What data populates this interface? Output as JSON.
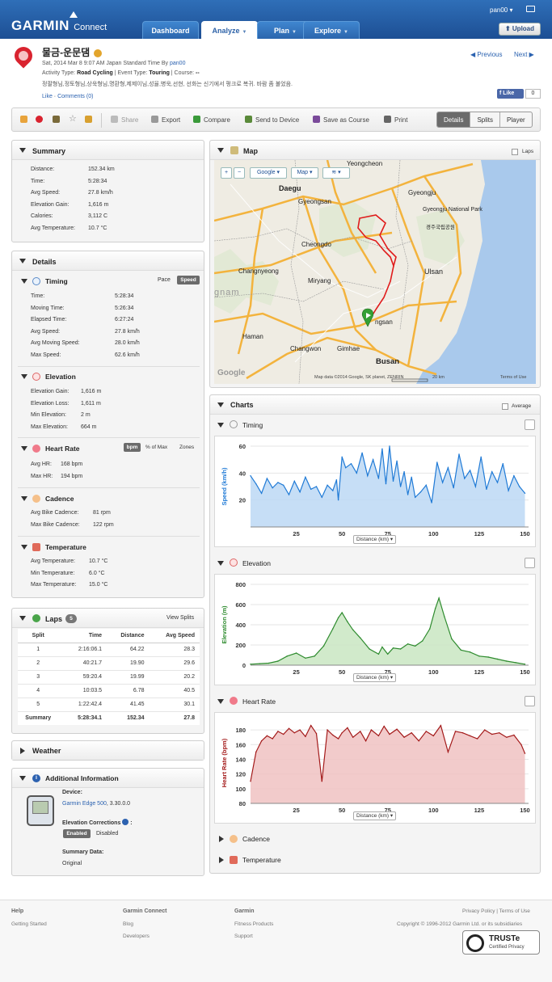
{
  "header": {
    "brand": "GARMIN",
    "product": "Connect",
    "tabs": [
      "Dashboard",
      "Analyze",
      "Plan",
      "Explore"
    ],
    "active_tab": "Analyze",
    "user": "pan00",
    "upload_label": "Upload"
  },
  "activity": {
    "title": "물금-운문댐",
    "date_line": "Sat, 2014 Mar 8 9:07 AM Japan Standard Time By",
    "author": "pan00",
    "type_label": "Activity Type:",
    "type": "Road Cycling",
    "event_label": "| Event Type:",
    "event": "Touring",
    "course_label": "| Course:",
    "course": "--",
    "description": "정팔형님,정토형님,상욱형님,명환형,제제이님,성율,병욱,선현, 선화는 신기에서 펑크로 복귀. 바람 좀 불었음.",
    "like": "Like",
    "comments": "Comments (0)",
    "prev": "Previous",
    "next": "Next",
    "fb_like": "Like",
    "fb_count": "0"
  },
  "toolbar": {
    "share": "Share",
    "export": "Export",
    "compare": "Compare",
    "send": "Send to Device",
    "save_course": "Save as Course",
    "print": "Print",
    "views": [
      "Details",
      "Splits",
      "Player"
    ]
  },
  "summary": {
    "title": "Summary",
    "rows": [
      [
        "Distance:",
        "152.34 km"
      ],
      [
        "Time:",
        "5:28:34"
      ],
      [
        "Avg Speed:",
        "27.8 km/h"
      ],
      [
        "Elevation Gain:",
        "1,616 m"
      ],
      [
        "Calories:",
        "3,112 C"
      ],
      [
        "Avg Temperature:",
        "10.7 °C"
      ]
    ]
  },
  "details": {
    "title": "Details",
    "timing": {
      "title": "Timing",
      "toggle": [
        "Pace",
        "Speed"
      ],
      "rows": [
        [
          "Time:",
          "5:28:34"
        ],
        [
          "Moving Time:",
          "5:26:34"
        ],
        [
          "Elapsed Time:",
          "6:27:24"
        ],
        [
          "Avg Speed:",
          "27.8 km/h"
        ],
        [
          "Avg Moving Speed:",
          "28.0 km/h"
        ],
        [
          "Max Speed:",
          "62.6 km/h"
        ]
      ]
    },
    "elevation": {
      "title": "Elevation",
      "rows": [
        [
          "Elevation Gain:",
          "1,616 m"
        ],
        [
          "Elevation Loss:",
          "1,611 m"
        ],
        [
          "Min Elevation:",
          "2 m"
        ],
        [
          "Max Elevation:",
          "664 m"
        ]
      ]
    },
    "heart_rate": {
      "title": "Heart Rate",
      "toggle": [
        "bpm",
        "% of Max",
        "Zones"
      ],
      "rows": [
        [
          "Avg HR:",
          "168 bpm"
        ],
        [
          "Max HR:",
          "194 bpm"
        ]
      ]
    },
    "cadence": {
      "title": "Cadence",
      "rows": [
        [
          "Avg Bike Cadence:",
          "81 rpm"
        ],
        [
          "Max Bike Cadence:",
          "122 rpm"
        ]
      ]
    },
    "temperature": {
      "title": "Temperature",
      "rows": [
        [
          "Avg Temperature:",
          "10.7 °C"
        ],
        [
          "Min Temperature:",
          "6.0 °C"
        ],
        [
          "Max Temperature:",
          "15.0 °C"
        ]
      ]
    }
  },
  "laps": {
    "title": "Laps",
    "count": "5",
    "view_splits": "View Splits",
    "columns": [
      "Split",
      "Time",
      "Distance",
      "Avg Speed"
    ],
    "rows": [
      [
        "1",
        "2:16:06.1",
        "64.22",
        "28.3"
      ],
      [
        "2",
        "40:21.7",
        "19.90",
        "29.6"
      ],
      [
        "3",
        "59:20.4",
        "19.99",
        "20.2"
      ],
      [
        "4",
        "10:03.5",
        "6.78",
        "40.5"
      ],
      [
        "5",
        "1:22:42.4",
        "41.45",
        "30.1"
      ],
      [
        "Summary",
        "5:28:34.1",
        "152.34",
        "27.8"
      ]
    ]
  },
  "weather": {
    "title": "Weather"
  },
  "additional": {
    "title": "Additional Information",
    "device_label": "Device:",
    "device_name": "Garmin Edge 500",
    "device_version": ", 3.30.0.0",
    "elev_corr_label": "Elevation Corrections",
    "enabled": "Enabled",
    "disabled": "Disabled",
    "summary_data_label": "Summary Data:",
    "summary_data": "Original"
  },
  "map": {
    "title": "Map",
    "laps_label": "Laps",
    "controls": [
      "Google",
      "Map"
    ],
    "attribution": "Map data ©2014 Google, SK planet, ZENRIN",
    "scale": "20 km",
    "terms": "Terms of Use",
    "cities": [
      "Yeongcheon",
      "Daegu",
      "Gyeongju",
      "Gyeongsan",
      "Gyeongju National Park",
      "경주국립공원",
      "Cheongdo",
      "Changnyeong",
      "Miryang",
      "Ulsan",
      "Haman",
      "Changwon",
      "Gimhae",
      "Busan",
      "ngsan",
      "gnam"
    ]
  },
  "charts": {
    "title": "Charts",
    "average_label": "Average",
    "distance_label": "Distance (km)",
    "cadence": "Cadence",
    "temperature": "Temperature"
  },
  "chart_data": [
    {
      "type": "area",
      "title": "Timing",
      "ylabel": "Speed (km/h)",
      "xlabel": "Distance (km)",
      "xlim": [
        0,
        152
      ],
      "ylim": [
        0,
        60
      ],
      "xticks": [
        25,
        50,
        75,
        100,
        125,
        150
      ],
      "yticks": [
        20,
        40,
        60
      ],
      "color": "#1f7ad6",
      "fill": "#bcd8f4",
      "x": [
        0,
        3,
        6,
        9,
        12,
        15,
        18,
        21,
        24,
        27,
        30,
        33,
        36,
        39,
        42,
        45,
        47,
        48,
        50,
        52,
        55,
        58,
        61,
        64,
        67,
        70,
        72,
        74,
        76,
        78,
        80,
        82,
        84,
        86,
        88,
        90,
        93,
        96,
        99,
        102,
        105,
        108,
        111,
        114,
        117,
        120,
        123,
        126,
        129,
        132,
        135,
        138,
        141,
        144,
        147,
        150
      ],
      "y": [
        38,
        32,
        25,
        36,
        29,
        33,
        31,
        24,
        34,
        26,
        37,
        28,
        30,
        22,
        31,
        27,
        35,
        20,
        52,
        44,
        47,
        40,
        55,
        38,
        50,
        36,
        58,
        32,
        60,
        34,
        49,
        30,
        41,
        24,
        37,
        22,
        26,
        31,
        18,
        48,
        33,
        44,
        29,
        54,
        36,
        42,
        30,
        52,
        28,
        41,
        33,
        47,
        27,
        38,
        30,
        25
      ]
    },
    {
      "type": "area",
      "title": "Elevation",
      "ylabel": "Elevation (m)",
      "xlabel": "Distance (km)",
      "xlim": [
        0,
        152
      ],
      "ylim": [
        0,
        800
      ],
      "xticks": [
        25,
        50,
        75,
        100,
        125,
        150
      ],
      "yticks": [
        0,
        200,
        400,
        600,
        800
      ],
      "color": "#2e8b2e",
      "fill": "#c9e6c2",
      "x": [
        0,
        5,
        10,
        15,
        20,
        25,
        30,
        35,
        40,
        45,
        48,
        50,
        53,
        56,
        60,
        65,
        70,
        72,
        75,
        78,
        82,
        86,
        90,
        94,
        98,
        101,
        103,
        106,
        110,
        115,
        120,
        125,
        130,
        135,
        140,
        145,
        150
      ],
      "y": [
        10,
        15,
        20,
        40,
        90,
        120,
        70,
        90,
        190,
        360,
        470,
        520,
        430,
        350,
        270,
        160,
        110,
        180,
        110,
        170,
        160,
        210,
        190,
        240,
        360,
        560,
        664,
        480,
        260,
        150,
        130,
        90,
        80,
        60,
        40,
        25,
        10
      ]
    },
    {
      "type": "area",
      "title": "Heart Rate",
      "ylabel": "Heart Rate (bpm)",
      "xlabel": "Distance (km)",
      "xlim": [
        0,
        152
      ],
      "ylim": [
        80,
        190
      ],
      "xticks": [
        25,
        50,
        75,
        100,
        125,
        150
      ],
      "yticks": [
        80,
        100,
        120,
        140,
        160,
        180
      ],
      "color": "#a31919",
      "fill": "#f0c2c2",
      "x": [
        0,
        3,
        6,
        9,
        12,
        15,
        18,
        21,
        24,
        27,
        30,
        33,
        36,
        39,
        42,
        45,
        48,
        50,
        53,
        56,
        60,
        63,
        66,
        70,
        73,
        76,
        80,
        84,
        88,
        92,
        96,
        100,
        104,
        108,
        112,
        116,
        120,
        124,
        128,
        132,
        136,
        140,
        144,
        148,
        150
      ],
      "y": [
        110,
        150,
        165,
        172,
        168,
        178,
        174,
        182,
        176,
        180,
        171,
        186,
        175,
        110,
        180,
        173,
        168,
        176,
        183,
        170,
        178,
        165,
        180,
        172,
        185,
        174,
        181,
        170,
        176,
        165,
        178,
        172,
        186,
        150,
        178,
        176,
        172,
        168,
        180,
        174,
        176,
        170,
        173,
        160,
        148
      ]
    }
  ],
  "footer": {
    "help": "Help",
    "getting_started": "Getting Started",
    "gc": "Garmin Connect",
    "blog": "Blog",
    "developers": "Developers",
    "garmin": "Garmin",
    "fitness": "Fitness Products",
    "support": "Support",
    "privacy": "Privacy Policy | Terms of Use",
    "copyright": "Copyright © 1996-2012 Garmin Ltd. or its subsidiaries",
    "truste": "TRUSTe",
    "truste_sub": "Certified Privacy"
  }
}
